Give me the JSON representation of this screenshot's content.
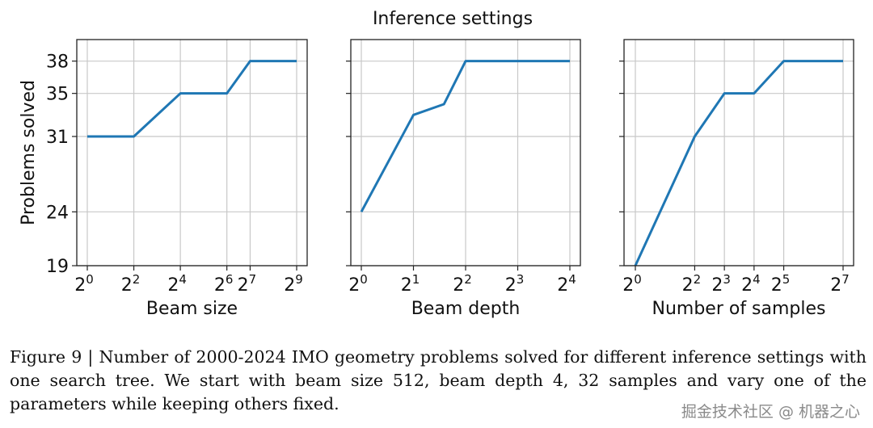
{
  "figure_title": "Inference settings",
  "ylabel": "Problems solved",
  "caption": "Figure 9 | Number of 2000-2024 IMO geometry problems solved for different inference settings with one search tree. We start with beam size 512, beam depth 4, 32 samples and vary one of the parameters while keeping others fixed.",
  "watermark": "掘金技术社区 @ 机器之心",
  "line_color": "#1f77b4",
  "chart_data": [
    {
      "type": "line",
      "xlabel": "Beam size",
      "x_scale": "log2",
      "x_exponents": [
        0,
        2,
        4,
        6,
        7,
        9
      ],
      "y": [
        31,
        31,
        35,
        35,
        38,
        38
      ],
      "xticks": [
        "0",
        "2",
        "4",
        "6",
        "7",
        "9"
      ],
      "yticks": [
        19,
        24,
        31,
        35,
        38
      ],
      "ylim": [
        19,
        40
      ],
      "grid": true
    },
    {
      "type": "line",
      "xlabel": "Beam depth",
      "x_scale": "log2",
      "x": [
        1,
        2,
        3,
        4,
        8,
        16
      ],
      "y": [
        24,
        33,
        34,
        38,
        38,
        38
      ],
      "xticks": [
        "0",
        "1",
        "2",
        "3",
        "4"
      ],
      "yticks": [
        19,
        24,
        31,
        35,
        38
      ],
      "ylim": [
        19,
        40
      ],
      "grid": true
    },
    {
      "type": "line",
      "xlabel": "Number of samples",
      "x_scale": "log2",
      "x_exponents": [
        0,
        2,
        3,
        4,
        5,
        7
      ],
      "y": [
        19,
        31,
        35,
        35,
        38,
        38
      ],
      "xticks": [
        "0",
        "2",
        "3",
        "4",
        "5",
        "7"
      ],
      "yticks": [
        19,
        24,
        31,
        35,
        38
      ],
      "ylim": [
        19,
        40
      ],
      "grid": true
    }
  ]
}
